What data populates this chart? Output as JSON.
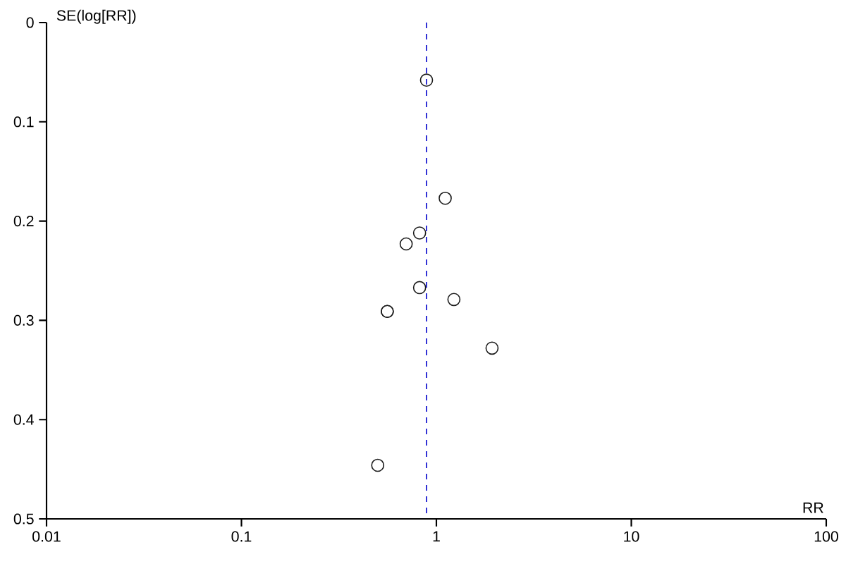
{
  "chart_data": {
    "type": "scatter",
    "xlabel": "RR",
    "ylabel": "SE(log[RR])",
    "x": [
      0.89,
      1.11,
      0.82,
      0.7,
      0.82,
      1.23,
      0.56,
      0.56,
      1.93,
      0.5
    ],
    "series": [
      {
        "color": "#1a1a1a",
        "values": [
          0.058,
          0.177,
          0.212,
          0.223,
          0.267,
          0.279,
          0.291,
          0.291,
          0.328,
          0.446
        ]
      }
    ],
    "log": "x",
    "marker": "circle",
    "grid": false,
    "xlim": [
      0.01,
      100
    ],
    "xticks": [
      0.01,
      0.1,
      1,
      10,
      100
    ],
    "ylim": [
      0.5,
      0
    ],
    "yticks": [
      0,
      0.1,
      0.2,
      0.3,
      0.4,
      0.5
    ],
    "ref_lines": [
      {
        "axis": "x",
        "value": 0.89,
        "color": "#0000cc",
        "line_style": "dashed"
      }
    ]
  }
}
